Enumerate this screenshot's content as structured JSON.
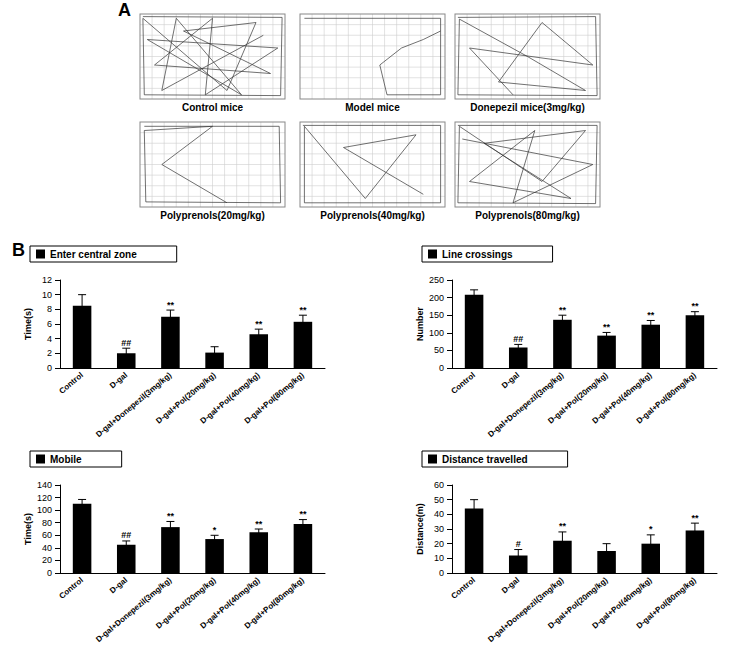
{
  "panel_labels": [
    "A",
    "B"
  ],
  "tracks": [
    "Control mice",
    "Model mice",
    "Donepezil mice(3mg/kg)",
    "Polyprenols(20mg/kg)",
    "Polyprenols(40mg/kg)",
    "Polyprenols(80mg/kg)"
  ],
  "chart_data": [
    {
      "type": "bar",
      "title": "Enter central zone",
      "ylabel": "Time(s)",
      "categories": [
        "Control",
        "D-gal",
        "D-gal+Donepezil(3mg/kg)",
        "D-gal+Pol(20mg/kg)",
        "D-gal+Pol(40mg/kg)",
        "D-gal+Pol(80mg/kg)"
      ],
      "values": [
        8.5,
        2.0,
        7.0,
        2.1,
        4.6,
        6.3
      ],
      "errors": [
        1.5,
        0.7,
        0.9,
        0.8,
        0.7,
        0.9
      ],
      "significance": [
        null,
        "##",
        "**",
        null,
        "**",
        "**"
      ],
      "color": "#000000",
      "ylim": [
        0,
        12
      ],
      "yticks": [
        0,
        2,
        4,
        6,
        8,
        10,
        12
      ]
    },
    {
      "type": "bar",
      "title": "Line crossings",
      "ylabel": "Number",
      "categories": [
        "Control",
        "D-gal",
        "D-gal+Donepezil(3mg/kg)",
        "D-gal+Pol(20mg/kg)",
        "D-gal+Pol(40mg/kg)",
        "D-gal+Pol(80mg/kg)"
      ],
      "values": [
        208,
        58,
        137,
        92,
        123,
        150
      ],
      "errors": [
        14,
        9,
        13,
        9,
        12,
        10
      ],
      "significance": [
        null,
        "##",
        "**",
        "**",
        "**",
        "**"
      ],
      "color": "#000000",
      "ylim": [
        0,
        250
      ],
      "yticks": [
        0,
        50,
        100,
        150,
        200,
        250
      ]
    },
    {
      "type": "bar",
      "title": "Mobile",
      "ylabel": "Time(s)",
      "categories": [
        "Control",
        "D-gal",
        "D-gal+Donepezil(3mg/kg)",
        "D-gal+Pol(20mg/kg)",
        "D-gal+Pol(40mg/kg)",
        "D-gal+Pol(80mg/kg)"
      ],
      "values": [
        110,
        45,
        73,
        54,
        65,
        78
      ],
      "errors": [
        7,
        6,
        9,
        6,
        5,
        7
      ],
      "significance": [
        null,
        "##",
        "**",
        "*",
        "**",
        "**"
      ],
      "color": "#000000",
      "ylim": [
        0,
        140
      ],
      "yticks": [
        0,
        20,
        40,
        60,
        80,
        100,
        120,
        140
      ]
    },
    {
      "type": "bar",
      "title": "Distance travelled",
      "ylabel": "Distance(m)",
      "categories": [
        "Control",
        "D-gal",
        "D-gal+Donepezil(3mg/kg)",
        "D-gal+Pol(20mg/kg)",
        "D-gal+Pol(40mg/kg)",
        "D-gal+Pol(80mg/kg)"
      ],
      "values": [
        44,
        12,
        22,
        15,
        20,
        29
      ],
      "errors": [
        6,
        4,
        6,
        5,
        6,
        5
      ],
      "significance": [
        null,
        "#",
        "**",
        null,
        "*",
        "**"
      ],
      "color": "#000000",
      "ylim": [
        0,
        60
      ],
      "yticks": [
        0,
        10,
        20,
        30,
        40,
        50,
        60
      ]
    }
  ]
}
